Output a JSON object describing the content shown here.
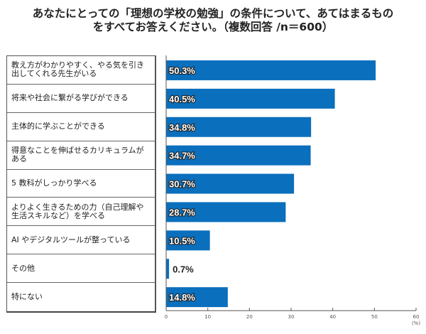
{
  "chart_data": {
    "type": "bar",
    "orientation": "horizontal",
    "title": "あなたにとっての「理想の学校の勉強」の条件について、あてはまるものをすべてお答えください。（複数回答 /n＝600）",
    "title_lines": [
      "あなたにとっての「理想の学校の勉強」の条件について、あてはまるもの",
      "をすべてお答えください。（複数回答 /n＝600）"
    ],
    "categories": [
      "教え方がわかりやすく、やる気を引き出してくれる先生がいる",
      "将来や社会に繋がる学びができる",
      "主体的に学ぶことができる",
      "得意なことを伸ばせるカリキュラムがある",
      "5 教科がしっかり学べる",
      "よりよく生きるための力（自己理解や生活スキルなど）を学べる",
      "AI やデジタルツールが整っている",
      "その他",
      "特にない"
    ],
    "values": [
      50.3,
      40.5,
      34.8,
      34.7,
      30.7,
      28.7,
      10.5,
      0.7,
      14.8
    ],
    "data_labels": [
      "50.3%",
      "40.5%",
      "34.8%",
      "34.7%",
      "30.7%",
      "28.7%",
      "10.5%",
      "0.7%",
      "14.8%"
    ],
    "xlim": [
      0,
      60
    ],
    "xticks": [
      "0",
      "10",
      "20",
      "30",
      "40",
      "50",
      "60"
    ],
    "xunit": "(%)",
    "grid": false,
    "bar_color": "#0a6fbd"
  }
}
